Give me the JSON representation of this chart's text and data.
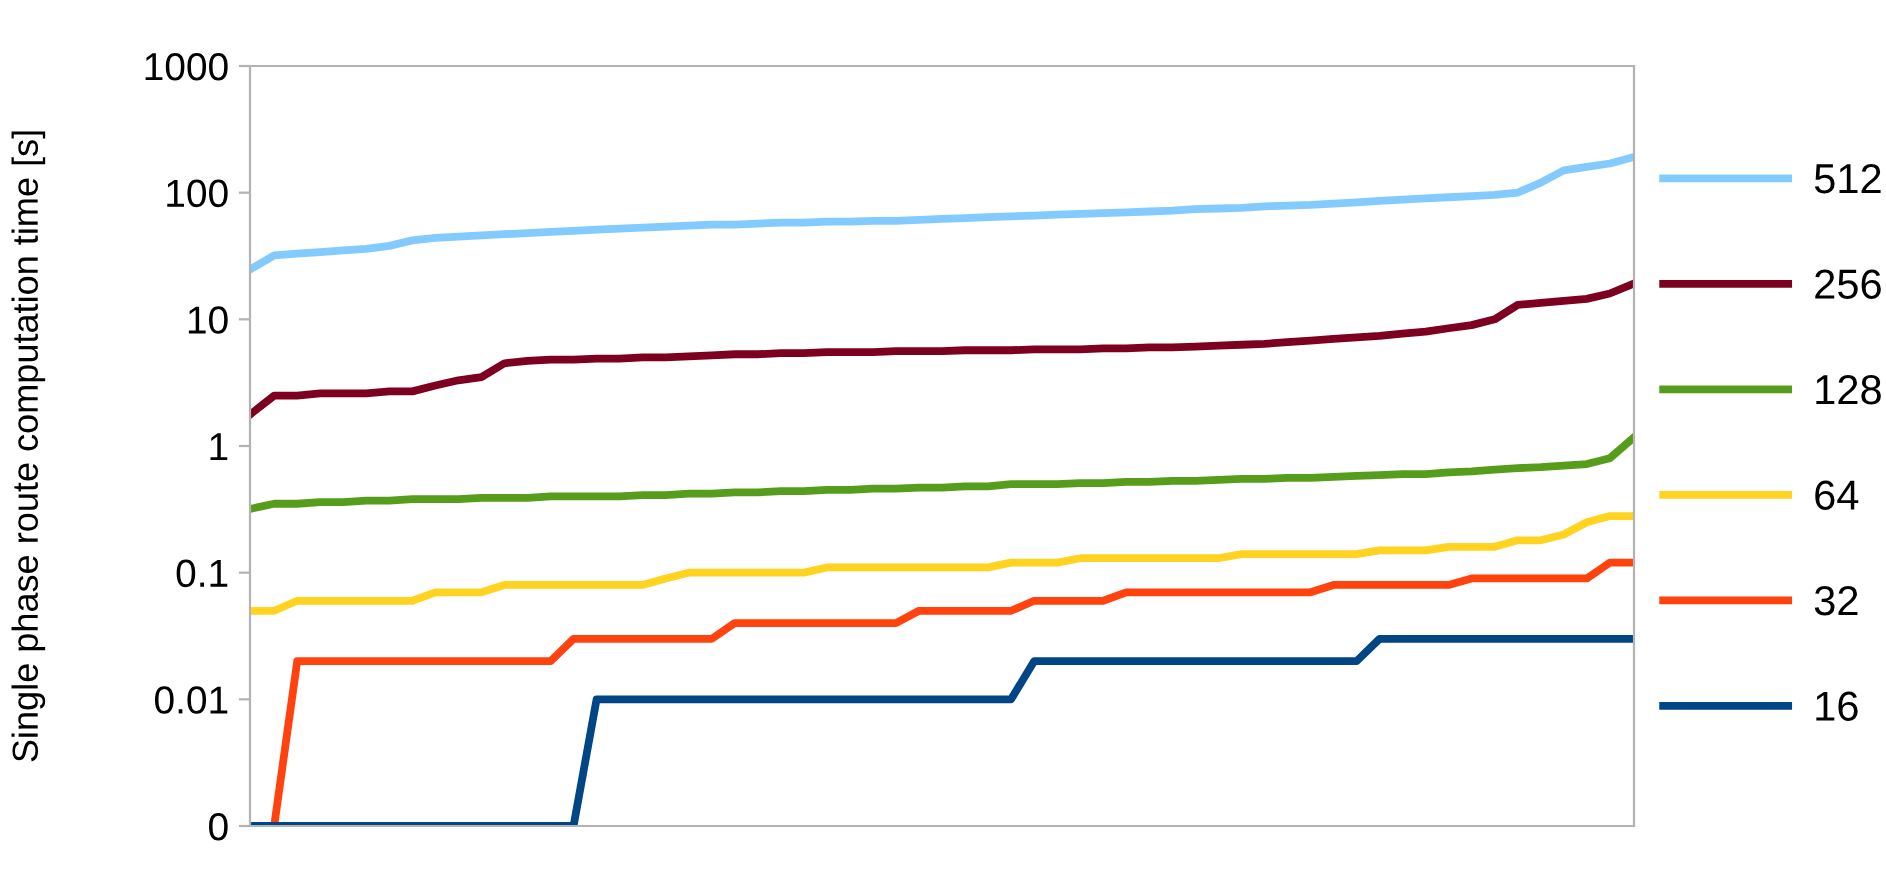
{
  "chart_data": {
    "type": "line",
    "ylabel": "Single phase route computation time [s]",
    "log": "y",
    "ylim": [
      0.001,
      1000
    ],
    "yticks": [
      {
        "value": 0.001,
        "label": "0"
      },
      0.01,
      0.1,
      1,
      10,
      100,
      1000
    ],
    "legend": "right",
    "grid": false,
    "marker": "none",
    "line_style": "solid",
    "categories": [
      null,
      null,
      null,
      null,
      null,
      null,
      null,
      null,
      null,
      null,
      null,
      null,
      null,
      null,
      null,
      null,
      null,
      null,
      null,
      null,
      null,
      null,
      null,
      null,
      null,
      null,
      null,
      null,
      null,
      null,
      null,
      null,
      null,
      null,
      null,
      null,
      null,
      null,
      null,
      null,
      null,
      null,
      null,
      null,
      null,
      null,
      null,
      null,
      null,
      null,
      null,
      null,
      null,
      null,
      null,
      null,
      null,
      null,
      null,
      null,
      null
    ],
    "series": [
      {
        "name": "512",
        "color": "#83caff",
        "values": [
          25,
          32,
          33,
          34,
          35,
          36,
          38,
          42,
          44,
          45,
          46,
          47,
          48,
          49,
          50,
          51,
          52,
          53,
          54,
          55,
          56,
          56,
          57,
          58,
          58,
          59,
          59,
          60,
          60,
          61,
          62,
          63,
          64,
          65,
          66,
          67,
          68,
          69,
          70,
          71,
          72,
          74,
          75,
          76,
          78,
          79,
          80,
          82,
          84,
          86,
          88,
          90,
          92,
          94,
          96,
          100,
          120,
          150,
          160,
          170,
          190
        ]
      },
      {
        "name": "256",
        "color": "#7e0021",
        "values": [
          1.8,
          2.5,
          2.5,
          2.6,
          2.6,
          2.6,
          2.7,
          2.7,
          3.0,
          3.3,
          3.5,
          4.5,
          4.7,
          4.8,
          4.8,
          4.9,
          4.9,
          5.0,
          5.0,
          5.1,
          5.2,
          5.3,
          5.3,
          5.4,
          5.4,
          5.5,
          5.5,
          5.5,
          5.6,
          5.6,
          5.6,
          5.7,
          5.7,
          5.7,
          5.8,
          5.8,
          5.8,
          5.9,
          5.9,
          6.0,
          6.0,
          6.1,
          6.2,
          6.3,
          6.4,
          6.6,
          6.8,
          7,
          7.2,
          7.4,
          7.7,
          8,
          8.5,
          9,
          10,
          13,
          13.5,
          14,
          14.5,
          16,
          19
        ]
      },
      {
        "name": "128",
        "color": "#579d1c",
        "values": [
          0.32,
          0.35,
          0.35,
          0.36,
          0.36,
          0.37,
          0.37,
          0.38,
          0.38,
          0.38,
          0.39,
          0.39,
          0.39,
          0.4,
          0.4,
          0.4,
          0.4,
          0.41,
          0.41,
          0.42,
          0.42,
          0.43,
          0.43,
          0.44,
          0.44,
          0.45,
          0.45,
          0.46,
          0.46,
          0.47,
          0.47,
          0.48,
          0.48,
          0.5,
          0.5,
          0.5,
          0.51,
          0.51,
          0.52,
          0.52,
          0.53,
          0.53,
          0.54,
          0.55,
          0.55,
          0.56,
          0.56,
          0.57,
          0.58,
          0.59,
          0.6,
          0.6,
          0.62,
          0.63,
          0.65,
          0.67,
          0.68,
          0.7,
          0.72,
          0.8,
          1.15
        ]
      },
      {
        "name": "64",
        "color": "#ffd320",
        "values": [
          0.05,
          0.05,
          0.06,
          0.06,
          0.06,
          0.06,
          0.06,
          0.06,
          0.07,
          0.07,
          0.07,
          0.08,
          0.08,
          0.08,
          0.08,
          0.08,
          0.08,
          0.08,
          0.09,
          0.1,
          0.1,
          0.1,
          0.1,
          0.1,
          0.1,
          0.11,
          0.11,
          0.11,
          0.11,
          0.11,
          0.11,
          0.11,
          0.11,
          0.12,
          0.12,
          0.12,
          0.13,
          0.13,
          0.13,
          0.13,
          0.13,
          0.13,
          0.13,
          0.14,
          0.14,
          0.14,
          0.14,
          0.14,
          0.14,
          0.15,
          0.15,
          0.15,
          0.16,
          0.16,
          0.16,
          0.18,
          0.18,
          0.2,
          0.25,
          0.28,
          0.28
        ]
      },
      {
        "name": "32",
        "color": "#ff420e",
        "values": [
          null,
          0.001,
          0.02,
          0.02,
          0.02,
          0.02,
          0.02,
          0.02,
          0.02,
          0.02,
          0.02,
          0.02,
          0.02,
          0.02,
          0.03,
          0.03,
          0.03,
          0.03,
          0.03,
          0.03,
          0.03,
          0.04,
          0.04,
          0.04,
          0.04,
          0.04,
          0.04,
          0.04,
          0.04,
          0.05,
          0.05,
          0.05,
          0.05,
          0.05,
          0.06,
          0.06,
          0.06,
          0.06,
          0.07,
          0.07,
          0.07,
          0.07,
          0.07,
          0.07,
          0.07,
          0.07,
          0.07,
          0.08,
          0.08,
          0.08,
          0.08,
          0.08,
          0.08,
          0.09,
          0.09,
          0.09,
          0.09,
          0.09,
          0.09,
          0.12,
          0.12
        ]
      },
      {
        "name": "16",
        "color": "#004586",
        "values": [
          0.001,
          0.001,
          0.001,
          0.001,
          0.001,
          0.001,
          0.001,
          0.001,
          0.001,
          0.001,
          0.001,
          0.001,
          0.001,
          0.001,
          0.001,
          0.01,
          0.01,
          0.01,
          0.01,
          0.01,
          0.01,
          0.01,
          0.01,
          0.01,
          0.01,
          0.01,
          0.01,
          0.01,
          0.01,
          0.01,
          0.01,
          0.01,
          0.01,
          0.01,
          0.02,
          0.02,
          0.02,
          0.02,
          0.02,
          0.02,
          0.02,
          0.02,
          0.02,
          0.02,
          0.02,
          0.02,
          0.02,
          0.02,
          0.02,
          0.03,
          0.03,
          0.03,
          0.03,
          0.03,
          0.03,
          0.03,
          0.03,
          0.03,
          0.03,
          0.03,
          0.03
        ]
      }
    ]
  }
}
